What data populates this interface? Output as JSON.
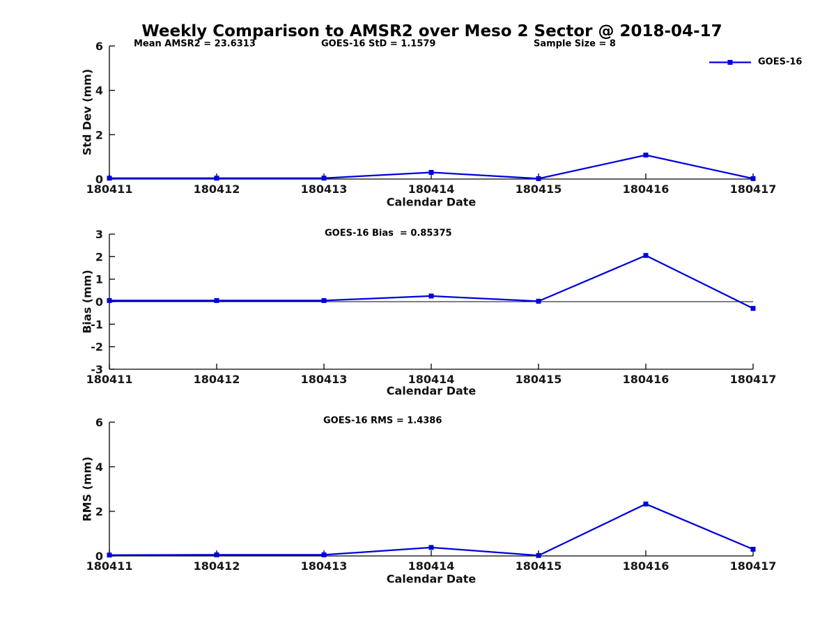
{
  "title": "Weekly Comparison to AMSR2 over Meso 2 Sector @ 2018-04-17",
  "legend": {
    "label": "GOES-16",
    "series_color": "#0000dd"
  },
  "chart_data": [
    {
      "type": "line",
      "name": "std_dev",
      "stats": [
        {
          "text": "Mean AMSR2 = 23.6313"
        },
        {
          "text": "GOES-16 StD = 1.1579"
        },
        {
          "text": "Sample Size = 8"
        }
      ],
      "categories": [
        "180411",
        "180412",
        "180413",
        "180414",
        "180415",
        "180416",
        "180417"
      ],
      "series": [
        {
          "name": "GOES-16",
          "color": "#0000dd",
          "values": [
            0.04,
            0.04,
            0.04,
            0.3,
            0.02,
            1.08,
            0.02
          ]
        }
      ],
      "xlabel": "Calendar Date",
      "ylabel": "Std Dev (mm)",
      "ylim": [
        0,
        6
      ],
      "yticks": [
        0,
        2,
        4,
        6
      ],
      "grid": false,
      "legend_position": "top-right"
    },
    {
      "type": "line",
      "name": "bias",
      "stats": [
        {
          "text": "GOES-16 Bias  = 0.85375"
        }
      ],
      "categories": [
        "180411",
        "180412",
        "180413",
        "180414",
        "180415",
        "180416",
        "180417"
      ],
      "series": [
        {
          "name": "GOES-16",
          "color": "#0000dd",
          "values": [
            0.05,
            0.05,
            0.05,
            0.25,
            0.02,
            2.05,
            -0.3
          ]
        }
      ],
      "xlabel": "Calendar Date",
      "ylabel": "Bias (mm)",
      "ylim": [
        -3,
        3
      ],
      "yticks": [
        -3,
        -2,
        -1,
        0,
        1,
        2,
        3
      ],
      "zero_line": true,
      "grid": false
    },
    {
      "type": "line",
      "name": "rms",
      "stats": [
        {
          "text": "GOES-16 RMS = 1.4386"
        }
      ],
      "categories": [
        "180411",
        "180412",
        "180413",
        "180414",
        "180415",
        "180416",
        "180417"
      ],
      "series": [
        {
          "name": "GOES-16",
          "color": "#0000dd",
          "values": [
            0.04,
            0.05,
            0.05,
            0.38,
            0.02,
            2.33,
            0.3
          ]
        }
      ],
      "xlabel": "Calendar Date",
      "ylabel": "RMS (mm)",
      "ylim": [
        0,
        6
      ],
      "yticks": [
        0,
        2,
        4,
        6
      ],
      "grid": false
    }
  ]
}
